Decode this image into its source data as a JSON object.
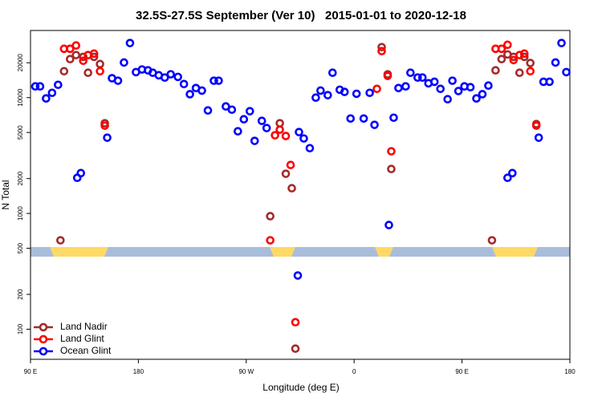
{
  "chart_data": {
    "type": "scatter",
    "title": "32.5S-27.5S September (Ver 10)   2015-01-01 to 2020-12-18",
    "x_label": "Longitude (deg E)",
    "y_label": "N Total",
    "xlim": [
      90,
      540
    ],
    "xticks": [
      {
        "value": 90,
        "label": "90 E"
      },
      {
        "value": 180,
        "label": "180"
      },
      {
        "value": 270,
        "label": "90 W"
      },
      {
        "value": 360,
        "label": "0"
      },
      {
        "value": 450,
        "label": "90 E"
      },
      {
        "value": 540,
        "label": "180"
      }
    ],
    "ylim": [
      55,
      38000
    ],
    "yticks": [
      100,
      200,
      500,
      1000,
      2000,
      5000,
      10000,
      20000
    ],
    "ylog": true,
    "legend": "lower left",
    "series": [
      {
        "name": "Land Nadir",
        "color": "#a52a2a",
        "x": [
          115,
          118,
          123,
          128,
          134,
          138,
          143,
          148,
          152,
          290,
          298,
          303,
          308,
          311,
          383,
          388,
          391,
          475,
          478,
          483,
          488,
          493,
          498,
          502,
          507,
          512
        ],
        "values": [
          586,
          16900,
          21500,
          23300,
          22500,
          16400,
          22500,
          19500,
          6010,
          946,
          6010,
          2200,
          1650,
          68,
          27300,
          15900,
          2420,
          586,
          17200,
          21500,
          23600,
          22500,
          16400,
          22500,
          19900,
          5910
        ]
      },
      {
        "name": "Land Glint",
        "color": "#ff0000",
        "x": [
          118,
          123,
          128,
          134,
          138,
          143,
          148,
          152,
          290,
          294,
          298,
          303,
          307,
          311,
          379,
          383,
          388,
          391,
          478,
          483,
          488,
          493,
          498,
          502,
          507,
          512
        ],
        "values": [
          26400,
          26400,
          28200,
          20800,
          23300,
          24000,
          16900,
          5730,
          586,
          4730,
          5290,
          4660,
          2620,
          115,
          11900,
          25200,
          15400,
          3440,
          26400,
          26400,
          28600,
          21100,
          23300,
          24000,
          16900,
          5730
        ]
      },
      {
        "name": "Ocean Glint",
        "color": "#0000ff",
        "x": [
          94,
          98,
          103,
          108,
          113,
          129,
          132,
          154,
          158,
          163,
          168,
          173,
          178,
          183,
          188,
          192,
          197,
          202,
          207,
          213,
          218,
          223,
          228,
          233,
          238,
          243,
          247,
          253,
          258,
          263,
          268,
          273,
          277,
          283,
          287,
          313,
          314,
          318,
          323,
          328,
          332,
          338,
          342,
          348,
          352,
          357,
          362,
          368,
          373,
          377,
          389,
          393,
          397,
          403,
          407,
          413,
          417,
          422,
          427,
          432,
          438,
          442,
          447,
          452,
          457,
          462,
          467,
          472,
          488,
          492,
          514,
          518,
          523,
          528,
          533,
          537
        ],
        "values": [
          12500,
          12500,
          9840,
          11000,
          12900,
          2030,
          2230,
          4510,
          14700,
          14000,
          20100,
          29600,
          16600,
          17500,
          17200,
          16400,
          15600,
          14900,
          15900,
          15100,
          13100,
          10700,
          12100,
          11500,
          7750,
          14000,
          14000,
          8390,
          7870,
          5120,
          6500,
          7630,
          4230,
          6300,
          5460,
          291,
          5040,
          4440,
          3660,
          10000,
          11500,
          10500,
          16400,
          11700,
          11200,
          6600,
          10800,
          6600,
          11000,
          5820,
          794,
          6710,
          12100,
          12500,
          16400,
          14900,
          14900,
          13300,
          13700,
          11900,
          9690,
          14000,
          11400,
          12500,
          12300,
          9840,
          10700,
          12700,
          2030,
          2230,
          4510,
          13700,
          13700,
          20100,
          29600,
          16600
        ]
      }
    ]
  }
}
